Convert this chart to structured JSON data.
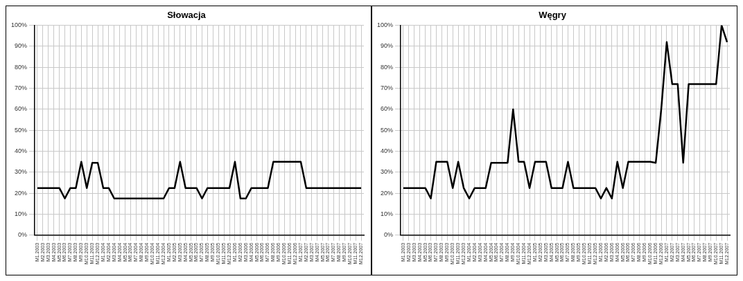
{
  "chart_data": [
    {
      "type": "line",
      "title": "Słowacja",
      "categories": [
        "M1.2003",
        "M2.2003",
        "M3.2003",
        "M4.2003",
        "M5.2003",
        "M6.2003",
        "M7.2003",
        "M8.2003",
        "M9.2003",
        "M10.2003",
        "M11.2003",
        "M12.2003",
        "M1.2004",
        "M2.2004",
        "M3.2004",
        "M4.2004",
        "M5.2004",
        "M6.2004",
        "M7.2004",
        "M8.2004",
        "M9.2004",
        "M10.2004",
        "M11.2004",
        "M12.2004",
        "M1.2005",
        "M2.2005",
        "M3.2005",
        "M4.2005",
        "M5.2005",
        "M6.2005",
        "M7.2005",
        "M8.2005",
        "M9.2005",
        "M10.2005",
        "M11.2005",
        "M12.2005",
        "M1.2006",
        "M2.2006",
        "M3.2006",
        "M4.2006",
        "M5.2006",
        "M6.2006",
        "M7.2006",
        "M8.2006",
        "M9.2006",
        "M10.2006",
        "M11.2006",
        "M12.2006",
        "M1.2007",
        "M2.2007",
        "M3.2007",
        "M4.2007",
        "M5.2007",
        "M6.2007",
        "M7.2007",
        "M8.2007",
        "M9.2007",
        "M10.2007",
        "M11.2007",
        "M12.2007"
      ],
      "series": [
        {
          "color": "#000000",
          "values": [
            22.5,
            22.5,
            22.5,
            22.5,
            22.5,
            17.5,
            22.5,
            22.5,
            35,
            22.5,
            34.5,
            34.5,
            22.5,
            22.5,
            17.5,
            17.5,
            17.5,
            17.5,
            17.5,
            17.5,
            17.5,
            17.5,
            17.5,
            17.5,
            22.5,
            22.5,
            35,
            22.5,
            22.5,
            22.5,
            17.5,
            22.5,
            22.5,
            22.5,
            22.5,
            22.5,
            35,
            17.5,
            17.5,
            22.5,
            22.5,
            22.5,
            22.5,
            35,
            35,
            35,
            35,
            35,
            35,
            22.5,
            22.5,
            22.5,
            22.5,
            22.5,
            22.5,
            22.5,
            22.5,
            22.5,
            22.5,
            22.5
          ]
        }
      ],
      "ylim": [
        0,
        100
      ],
      "yticks": [
        {
          "value": 0,
          "label": "0%"
        },
        {
          "value": 10,
          "label": "10%"
        },
        {
          "value": 20,
          "label": "20%"
        },
        {
          "value": 30,
          "label": "30%"
        },
        {
          "value": 40,
          "label": "40%"
        },
        {
          "value": 50,
          "label": "50%"
        },
        {
          "value": 60,
          "label": "60%"
        },
        {
          "value": 70,
          "label": "70%"
        },
        {
          "value": 80,
          "label": "80%"
        },
        {
          "value": 90,
          "label": "90%"
        },
        {
          "value": 100,
          "label": "100%"
        }
      ],
      "grid": true,
      "legend": false,
      "marker": "none",
      "line_style": "solid"
    },
    {
      "type": "line",
      "title": "Węgry",
      "categories": [
        "M1.2003",
        "M2.2003",
        "M3.2003",
        "M4.2003",
        "M5.2003",
        "M6.2003",
        "M7.2003",
        "M8.2003",
        "M9.2003",
        "M10.2003",
        "M11.2003",
        "M12.2003",
        "M1.2004",
        "M2.2004",
        "M3.2004",
        "M4.2004",
        "M5.2004",
        "M6.2004",
        "M7.2004",
        "M8.2004",
        "M9.2004",
        "M10.2004",
        "M11.2004",
        "M12.2004",
        "M1.2005",
        "M2.2005",
        "M3.2005",
        "M4.2005",
        "M5.2005",
        "M6.2005",
        "M7.2005",
        "M8.2005",
        "M9.2005",
        "M10.2005",
        "M11.2005",
        "M12.2005",
        "M1.2006",
        "M2.2006",
        "M3.2006",
        "M4.2006",
        "M5.2006",
        "M6.2006",
        "M7.2006",
        "M8.2006",
        "M9.2006",
        "M10.2006",
        "M11.2006",
        "M12.2006",
        "M1.2007",
        "M2.2007",
        "M3.2007",
        "M4.2007",
        "M5.2007",
        "M6.2007",
        "M7.2007",
        "M8.2007",
        "M9.2007",
        "M10.2007",
        "M11.2007",
        "M12.2007"
      ],
      "series": [
        {
          "color": "#000000",
          "values": [
            22.5,
            22.5,
            22.5,
            22.5,
            22.5,
            17.5,
            35,
            35,
            35,
            22.5,
            35,
            22.5,
            17.5,
            22.5,
            22.5,
            22.5,
            34.5,
            34.5,
            34.5,
            34.5,
            60,
            35,
            35,
            22.5,
            35,
            35,
            35,
            22.5,
            22.5,
            22.5,
            35,
            22.5,
            22.5,
            22.5,
            22.5,
            22.5,
            17.5,
            22.5,
            17.5,
            35,
            22.5,
            35,
            35,
            35,
            35,
            35,
            34.5,
            60,
            92,
            72,
            72,
            34.5,
            72,
            72,
            72,
            72,
            72,
            72,
            100,
            92
          ]
        }
      ],
      "ylim": [
        0,
        100
      ],
      "yticks": [
        {
          "value": 0,
          "label": "0%"
        },
        {
          "value": 10,
          "label": "10%"
        },
        {
          "value": 20,
          "label": "20%"
        },
        {
          "value": 30,
          "label": "30%"
        },
        {
          "value": 40,
          "label": "40%"
        },
        {
          "value": 50,
          "label": "50%"
        },
        {
          "value": 60,
          "label": "60%"
        },
        {
          "value": 70,
          "label": "70%"
        },
        {
          "value": 80,
          "label": "80%"
        },
        {
          "value": 90,
          "label": "90%"
        },
        {
          "value": 100,
          "label": "100%"
        }
      ],
      "grid": true,
      "legend": false,
      "marker": "none",
      "line_style": "solid"
    }
  ]
}
